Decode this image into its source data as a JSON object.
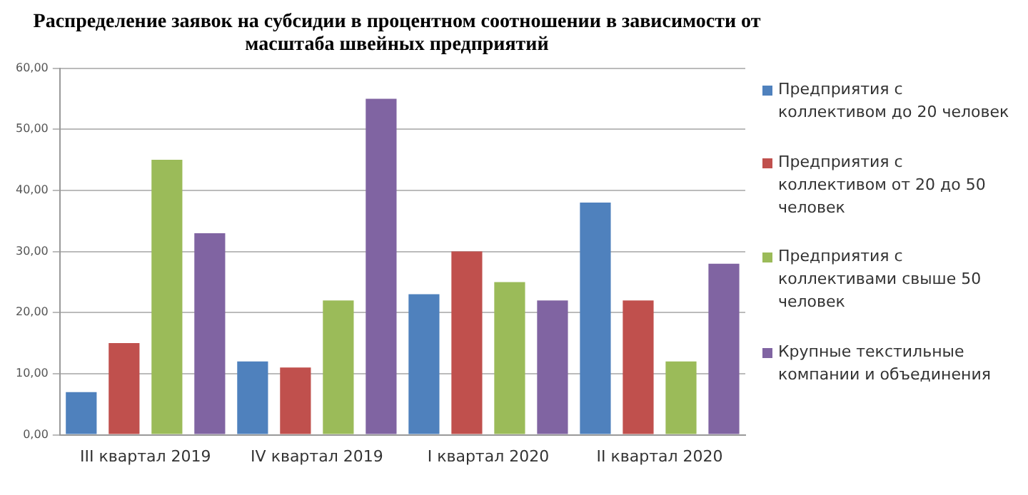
{
  "chart_data": {
    "type": "bar",
    "title": "Распределение заявок на субсидии в процентном соотношении в зависимости от масштаба швейных предприятий",
    "categories": [
      "III квартал 2019",
      "IV квартал 2019",
      "I квартал 2020",
      "II квартал 2020"
    ],
    "series": [
      {
        "name": "Предприятия с коллективом до 20 человек",
        "color": "#4f81bd",
        "values": [
          7,
          12,
          23,
          38
        ]
      },
      {
        "name": "Предприятия с коллективом от 20 до 50 человек",
        "color": "#c0504d",
        "values": [
          15,
          11,
          30,
          22
        ]
      },
      {
        "name": "Предприятия с коллективами свыше 50 человек",
        "color": "#9bbb59",
        "values": [
          45,
          22,
          25,
          12
        ]
      },
      {
        "name": "Крупные текстильные компании и объединения",
        "color": "#8064a2",
        "values": [
          33,
          55,
          22,
          28
        ]
      }
    ],
    "ylim": [
      0,
      60
    ],
    "yticks": [
      {
        "value": 0,
        "label": "0,00"
      },
      {
        "value": 10,
        "label": "10,00"
      },
      {
        "value": 20,
        "label": "20,00"
      },
      {
        "value": 30,
        "label": "30,00"
      },
      {
        "value": 40,
        "label": "40,00"
      },
      {
        "value": 50,
        "label": "50,00"
      },
      {
        "value": 60,
        "label": "60,00"
      }
    ],
    "grid": "y",
    "legend": "right"
  }
}
